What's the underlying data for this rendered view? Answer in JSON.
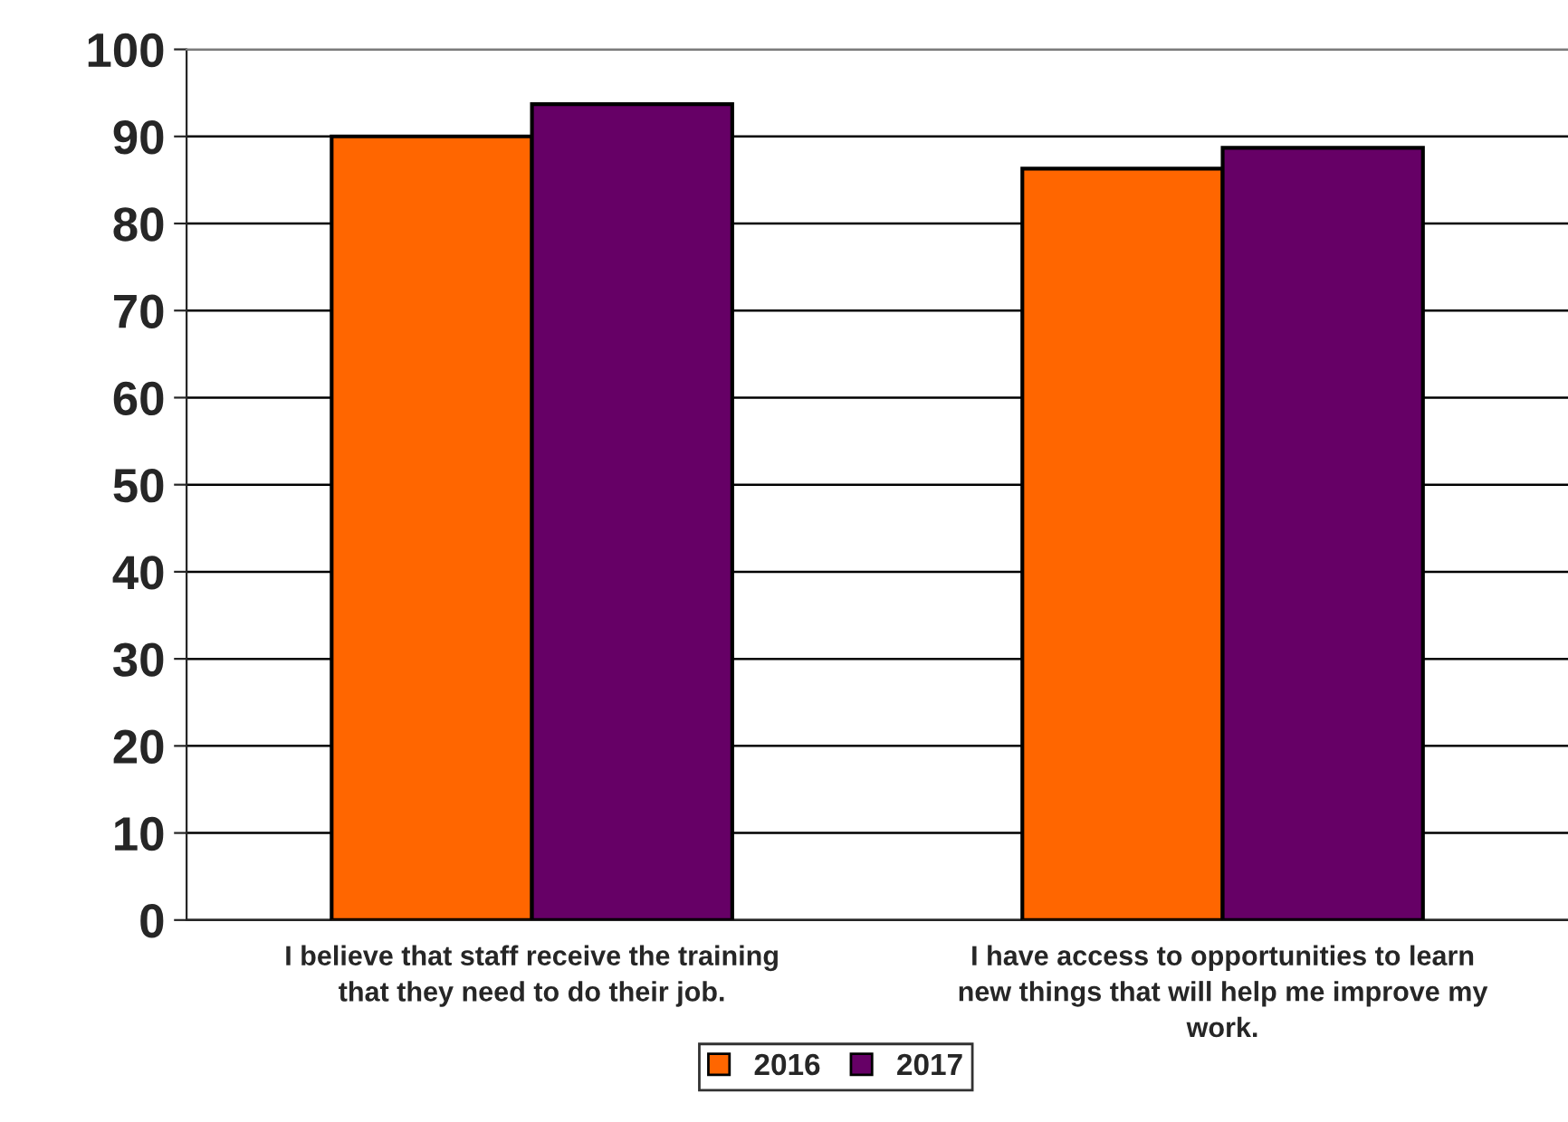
{
  "chart_data": {
    "type": "bar",
    "categories": [
      "I believe that staff receive the training that they need to do their job.",
      "I have access to opportunities to learn new things that will help me improve my work."
    ],
    "series": [
      {
        "name": "2016",
        "color": "#ff6600",
        "values": [
          90,
          86.3
        ]
      },
      {
        "name": "2017",
        "color": "#660066",
        "values": [
          93.7,
          88.7
        ]
      }
    ],
    "ylim": [
      0,
      100
    ],
    "yticks": [
      0,
      10,
      20,
      30,
      40,
      50,
      60,
      70,
      80,
      90,
      100
    ],
    "grid": "y",
    "legend": "bottom"
  }
}
